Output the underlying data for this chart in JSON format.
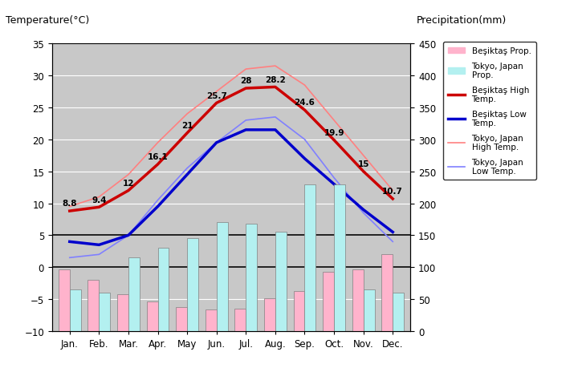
{
  "months": [
    "Jan.",
    "Feb.",
    "Mar.",
    "Apr.",
    "May",
    "Jun.",
    "Jul.",
    "Aug.",
    "Sep.",
    "Oct.",
    "Nov.",
    "Dec."
  ],
  "besiktas_high": [
    8.8,
    9.4,
    12,
    16.1,
    21,
    25.7,
    28,
    28.2,
    24.6,
    19.9,
    15,
    10.7
  ],
  "besiktas_low": [
    4.0,
    3.5,
    5.0,
    9.5,
    14.5,
    19.5,
    21.5,
    21.5,
    17.0,
    13.0,
    9.0,
    5.5
  ],
  "tokyo_high": [
    9.5,
    11.0,
    14.5,
    19.5,
    24.0,
    27.5,
    31.0,
    31.5,
    28.5,
    23.0,
    17.5,
    12.0
  ],
  "tokyo_low": [
    1.5,
    2.0,
    5.0,
    10.5,
    15.5,
    19.5,
    23.0,
    23.5,
    20.0,
    14.0,
    8.5,
    4.0
  ],
  "besiktas_precip_mm": [
    96,
    80,
    58,
    46,
    38,
    34,
    35,
    51,
    63,
    93,
    96,
    120
  ],
  "tokyo_precip_mm": [
    65,
    60,
    115,
    130,
    145,
    170,
    168,
    155,
    230,
    230,
    65,
    60
  ],
  "background_color": "#c8c8c8",
  "title_left": "Temperature(°C)",
  "title_right": "Precipitation(mm)",
  "ylim_temp": [
    -10,
    35
  ],
  "ylim_precip": [
    0,
    450
  ],
  "besiktas_high_color": "#cc0000",
  "besiktas_low_color": "#0000cc",
  "tokyo_high_color": "#ff8080",
  "tokyo_low_color": "#8080ff",
  "besiktas_precip_color": "#ffb3cc",
  "tokyo_precip_color": "#b3f0f0",
  "gridline_color": "white",
  "hline_color": "black"
}
